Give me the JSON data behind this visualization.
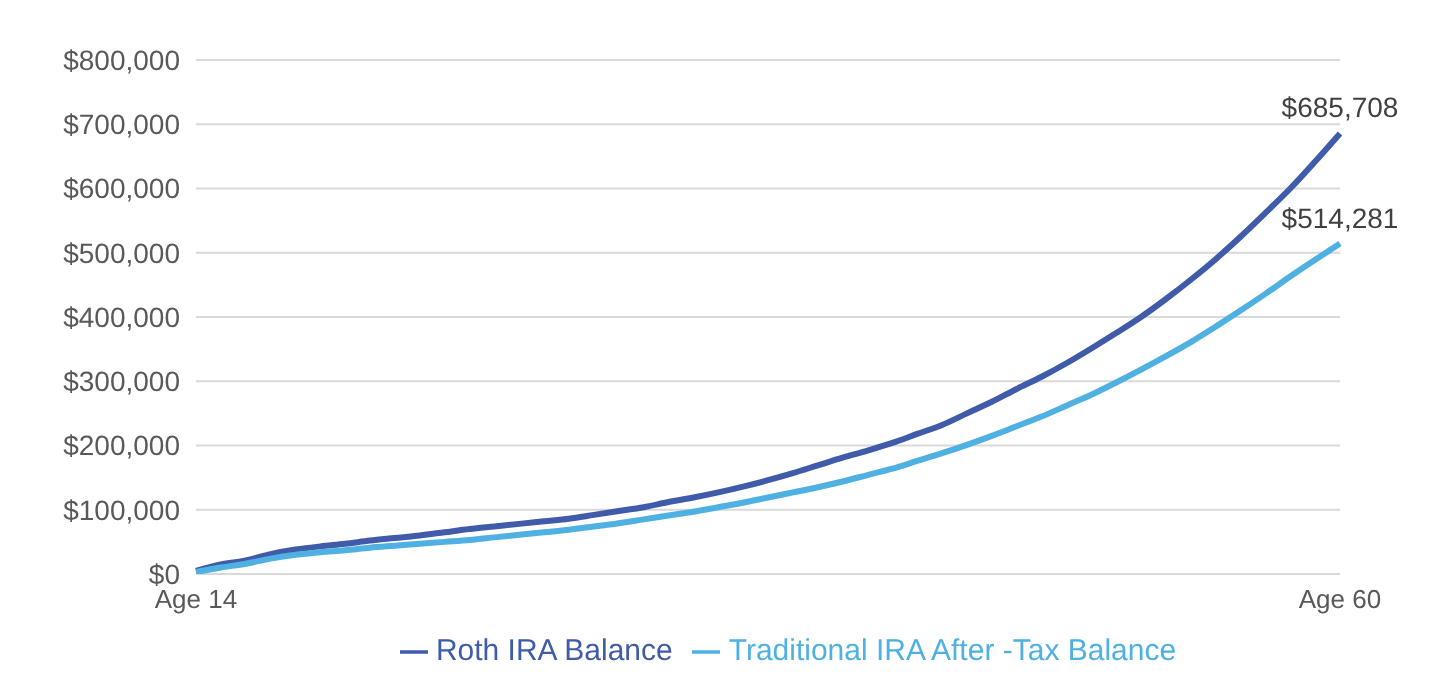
{
  "chart_data": {
    "type": "line",
    "categories": [
      "Age 14",
      null,
      null,
      null,
      null,
      null,
      null,
      null,
      null,
      null,
      null,
      null,
      null,
      null,
      null,
      null,
      null,
      null,
      null,
      null,
      null,
      null,
      null,
      null,
      null,
      null,
      null,
      null,
      null,
      null,
      null,
      null,
      null,
      null,
      null,
      null,
      null,
      null,
      null,
      null,
      null,
      null,
      null,
      null,
      null,
      null,
      "Age 60"
    ],
    "series": [
      {
        "name": "Roth IRA Balance",
        "color": "#3f5ba9",
        "values": [
          5000,
          15000,
          21000,
          31000,
          38000,
          43000,
          47000,
          52000,
          56000,
          60000,
          65000,
          70000,
          74000,
          78000,
          82000,
          86000,
          92000,
          98000,
          104000,
          112000,
          119000,
          127000,
          136000,
          146000,
          157000,
          169000,
          181000,
          192000,
          204000,
          218000,
          232000,
          250000,
          268000,
          288000,
          307000,
          328000,
          351000,
          375000,
          400000,
          428000,
          458000,
          490000,
          525000,
          562000,
          600000,
          642000,
          685708
        ],
        "value_labels": [
          null,
          null,
          null,
          null,
          null,
          null,
          null,
          null,
          null,
          null,
          null,
          null,
          null,
          null,
          null,
          null,
          null,
          null,
          null,
          null,
          null,
          null,
          null,
          null,
          null,
          null,
          null,
          null,
          null,
          null,
          null,
          null,
          null,
          null,
          null,
          null,
          null,
          null,
          null,
          null,
          null,
          null,
          null,
          null,
          null,
          null,
          "$685,708"
        ]
      },
      {
        "name": "Traditional IRA After -Tax Balance",
        "color": "#4fb0e2",
        "values": [
          3000,
          10000,
          16000,
          24000,
          30000,
          34000,
          37000,
          41000,
          44000,
          47000,
          50000,
          53000,
          57000,
          61000,
          65000,
          69000,
          74000,
          79000,
          85000,
          91000,
          97000,
          104000,
          111000,
          119000,
          127000,
          135000,
          144000,
          154000,
          164000,
          176000,
          188000,
          201000,
          215000,
          230000,
          245000,
          262000,
          279000,
          298000,
          318000,
          339000,
          361000,
          385000,
          410000,
          436000,
          463000,
          489000,
          514281
        ],
        "value_labels": [
          null,
          null,
          null,
          null,
          null,
          null,
          null,
          null,
          null,
          null,
          null,
          null,
          null,
          null,
          null,
          null,
          null,
          null,
          null,
          null,
          null,
          null,
          null,
          null,
          null,
          null,
          null,
          null,
          null,
          null,
          null,
          null,
          null,
          null,
          null,
          null,
          null,
          null,
          null,
          null,
          null,
          null,
          null,
          null,
          null,
          null,
          "$514,281"
        ]
      }
    ],
    "ylim": [
      0,
      800000
    ],
    "yticks": [
      {
        "value": 0,
        "label": "$0"
      },
      {
        "value": 100000,
        "label": "$100,000"
      },
      {
        "value": 200000,
        "label": "$200,000"
      },
      {
        "value": 300000,
        "label": "$300,000"
      },
      {
        "value": 400000,
        "label": "$400,000"
      },
      {
        "value": 500000,
        "label": "$500,000"
      },
      {
        "value": 600000,
        "label": "$600,000"
      },
      {
        "value": 700000,
        "label": "$700,000"
      },
      {
        "value": 800000,
        "label": "$800,000"
      }
    ],
    "grid": "y",
    "legend": "bottom",
    "marker": "none",
    "line_style": "solid"
  }
}
